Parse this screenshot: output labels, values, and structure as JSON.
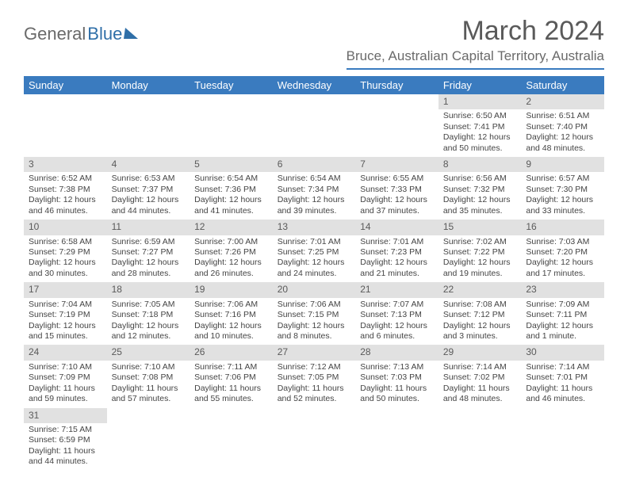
{
  "logo": {
    "part1": "General",
    "part2": "Blue"
  },
  "title": "March 2024",
  "location": "Bruce, Australian Capital Territory, Australia",
  "colors": {
    "header_bg": "#3a7bbf",
    "header_text": "#ffffff",
    "daynum_bg": "#e1e1e1",
    "text": "#444444",
    "logo_accent": "#2f6fa8"
  },
  "typography": {
    "title_fontsize": 34,
    "location_fontsize": 17,
    "header_fontsize": 13,
    "body_fontsize": 10.5
  },
  "day_headers": [
    "Sunday",
    "Monday",
    "Tuesday",
    "Wednesday",
    "Thursday",
    "Friday",
    "Saturday"
  ],
  "weeks": [
    [
      null,
      null,
      null,
      null,
      null,
      {
        "n": "1",
        "sr": "Sunrise: 6:50 AM",
        "ss": "Sunset: 7:41 PM",
        "d1": "Daylight: 12 hours",
        "d2": "and 50 minutes."
      },
      {
        "n": "2",
        "sr": "Sunrise: 6:51 AM",
        "ss": "Sunset: 7:40 PM",
        "d1": "Daylight: 12 hours",
        "d2": "and 48 minutes."
      }
    ],
    [
      {
        "n": "3",
        "sr": "Sunrise: 6:52 AM",
        "ss": "Sunset: 7:38 PM",
        "d1": "Daylight: 12 hours",
        "d2": "and 46 minutes."
      },
      {
        "n": "4",
        "sr": "Sunrise: 6:53 AM",
        "ss": "Sunset: 7:37 PM",
        "d1": "Daylight: 12 hours",
        "d2": "and 44 minutes."
      },
      {
        "n": "5",
        "sr": "Sunrise: 6:54 AM",
        "ss": "Sunset: 7:36 PM",
        "d1": "Daylight: 12 hours",
        "d2": "and 41 minutes."
      },
      {
        "n": "6",
        "sr": "Sunrise: 6:54 AM",
        "ss": "Sunset: 7:34 PM",
        "d1": "Daylight: 12 hours",
        "d2": "and 39 minutes."
      },
      {
        "n": "7",
        "sr": "Sunrise: 6:55 AM",
        "ss": "Sunset: 7:33 PM",
        "d1": "Daylight: 12 hours",
        "d2": "and 37 minutes."
      },
      {
        "n": "8",
        "sr": "Sunrise: 6:56 AM",
        "ss": "Sunset: 7:32 PM",
        "d1": "Daylight: 12 hours",
        "d2": "and 35 minutes."
      },
      {
        "n": "9",
        "sr": "Sunrise: 6:57 AM",
        "ss": "Sunset: 7:30 PM",
        "d1": "Daylight: 12 hours",
        "d2": "and 33 minutes."
      }
    ],
    [
      {
        "n": "10",
        "sr": "Sunrise: 6:58 AM",
        "ss": "Sunset: 7:29 PM",
        "d1": "Daylight: 12 hours",
        "d2": "and 30 minutes."
      },
      {
        "n": "11",
        "sr": "Sunrise: 6:59 AM",
        "ss": "Sunset: 7:27 PM",
        "d1": "Daylight: 12 hours",
        "d2": "and 28 minutes."
      },
      {
        "n": "12",
        "sr": "Sunrise: 7:00 AM",
        "ss": "Sunset: 7:26 PM",
        "d1": "Daylight: 12 hours",
        "d2": "and 26 minutes."
      },
      {
        "n": "13",
        "sr": "Sunrise: 7:01 AM",
        "ss": "Sunset: 7:25 PM",
        "d1": "Daylight: 12 hours",
        "d2": "and 24 minutes."
      },
      {
        "n": "14",
        "sr": "Sunrise: 7:01 AM",
        "ss": "Sunset: 7:23 PM",
        "d1": "Daylight: 12 hours",
        "d2": "and 21 minutes."
      },
      {
        "n": "15",
        "sr": "Sunrise: 7:02 AM",
        "ss": "Sunset: 7:22 PM",
        "d1": "Daylight: 12 hours",
        "d2": "and 19 minutes."
      },
      {
        "n": "16",
        "sr": "Sunrise: 7:03 AM",
        "ss": "Sunset: 7:20 PM",
        "d1": "Daylight: 12 hours",
        "d2": "and 17 minutes."
      }
    ],
    [
      {
        "n": "17",
        "sr": "Sunrise: 7:04 AM",
        "ss": "Sunset: 7:19 PM",
        "d1": "Daylight: 12 hours",
        "d2": "and 15 minutes."
      },
      {
        "n": "18",
        "sr": "Sunrise: 7:05 AM",
        "ss": "Sunset: 7:18 PM",
        "d1": "Daylight: 12 hours",
        "d2": "and 12 minutes."
      },
      {
        "n": "19",
        "sr": "Sunrise: 7:06 AM",
        "ss": "Sunset: 7:16 PM",
        "d1": "Daylight: 12 hours",
        "d2": "and 10 minutes."
      },
      {
        "n": "20",
        "sr": "Sunrise: 7:06 AM",
        "ss": "Sunset: 7:15 PM",
        "d1": "Daylight: 12 hours",
        "d2": "and 8 minutes."
      },
      {
        "n": "21",
        "sr": "Sunrise: 7:07 AM",
        "ss": "Sunset: 7:13 PM",
        "d1": "Daylight: 12 hours",
        "d2": "and 6 minutes."
      },
      {
        "n": "22",
        "sr": "Sunrise: 7:08 AM",
        "ss": "Sunset: 7:12 PM",
        "d1": "Daylight: 12 hours",
        "d2": "and 3 minutes."
      },
      {
        "n": "23",
        "sr": "Sunrise: 7:09 AM",
        "ss": "Sunset: 7:11 PM",
        "d1": "Daylight: 12 hours",
        "d2": "and 1 minute."
      }
    ],
    [
      {
        "n": "24",
        "sr": "Sunrise: 7:10 AM",
        "ss": "Sunset: 7:09 PM",
        "d1": "Daylight: 11 hours",
        "d2": "and 59 minutes."
      },
      {
        "n": "25",
        "sr": "Sunrise: 7:10 AM",
        "ss": "Sunset: 7:08 PM",
        "d1": "Daylight: 11 hours",
        "d2": "and 57 minutes."
      },
      {
        "n": "26",
        "sr": "Sunrise: 7:11 AM",
        "ss": "Sunset: 7:06 PM",
        "d1": "Daylight: 11 hours",
        "d2": "and 55 minutes."
      },
      {
        "n": "27",
        "sr": "Sunrise: 7:12 AM",
        "ss": "Sunset: 7:05 PM",
        "d1": "Daylight: 11 hours",
        "d2": "and 52 minutes."
      },
      {
        "n": "28",
        "sr": "Sunrise: 7:13 AM",
        "ss": "Sunset: 7:03 PM",
        "d1": "Daylight: 11 hours",
        "d2": "and 50 minutes."
      },
      {
        "n": "29",
        "sr": "Sunrise: 7:14 AM",
        "ss": "Sunset: 7:02 PM",
        "d1": "Daylight: 11 hours",
        "d2": "and 48 minutes."
      },
      {
        "n": "30",
        "sr": "Sunrise: 7:14 AM",
        "ss": "Sunset: 7:01 PM",
        "d1": "Daylight: 11 hours",
        "d2": "and 46 minutes."
      }
    ],
    [
      {
        "n": "31",
        "sr": "Sunrise: 7:15 AM",
        "ss": "Sunset: 6:59 PM",
        "d1": "Daylight: 11 hours",
        "d2": "and 44 minutes."
      },
      null,
      null,
      null,
      null,
      null,
      null
    ]
  ]
}
